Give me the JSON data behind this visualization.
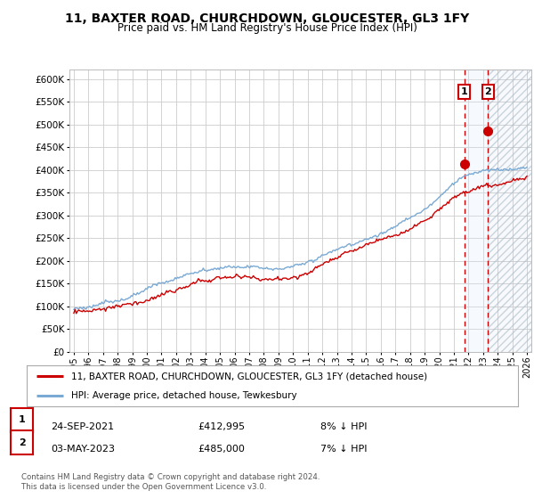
{
  "title": "11, BAXTER ROAD, CHURCHDOWN, GLOUCESTER, GL3 1FY",
  "subtitle": "Price paid vs. HM Land Registry's House Price Index (HPI)",
  "title_fontsize": 10,
  "subtitle_fontsize": 8.5,
  "ylim": [
    0,
    620000
  ],
  "yticks": [
    0,
    50000,
    100000,
    150000,
    200000,
    250000,
    300000,
    350000,
    400000,
    450000,
    500000,
    550000,
    600000
  ],
  "ytick_labels": [
    "£0",
    "£50K",
    "£100K",
    "£150K",
    "£200K",
    "£250K",
    "£300K",
    "£350K",
    "£400K",
    "£450K",
    "£500K",
    "£550K",
    "£600K"
  ],
  "xlim_start": 1994.7,
  "xlim_end": 2026.3,
  "xticks": [
    1995,
    1996,
    1997,
    1998,
    1999,
    2000,
    2001,
    2002,
    2003,
    2004,
    2005,
    2006,
    2007,
    2008,
    2009,
    2010,
    2011,
    2012,
    2013,
    2014,
    2015,
    2016,
    2017,
    2018,
    2019,
    2020,
    2021,
    2022,
    2023,
    2024,
    2025,
    2026
  ],
  "hpi_color": "#7aaad4",
  "price_color": "#cc0000",
  "sale1_x": 2021.72,
  "sale1_y": 412995,
  "sale2_x": 2023.33,
  "sale2_y": 485000,
  "sale1_label": "1",
  "sale2_label": "2",
  "sale1_date": "24-SEP-2021",
  "sale1_price": "£412,995",
  "sale1_note": "8% ↓ HPI",
  "sale2_date": "03-MAY-2023",
  "sale2_price": "£485,000",
  "sale2_note": "7% ↓ HPI",
  "legend_line1": "11, BAXTER ROAD, CHURCHDOWN, GLOUCESTER, GL3 1FY (detached house)",
  "legend_line2": "HPI: Average price, detached house, Tewkesbury",
  "footnote1": "Contains HM Land Registry data © Crown copyright and database right 2024.",
  "footnote2": "This data is licensed under the Open Government Licence v3.0.",
  "background_color": "#ffffff",
  "grid_color": "#cccccc",
  "shade_color": "#ddeeff",
  "hatch_color": "#bbccdd"
}
